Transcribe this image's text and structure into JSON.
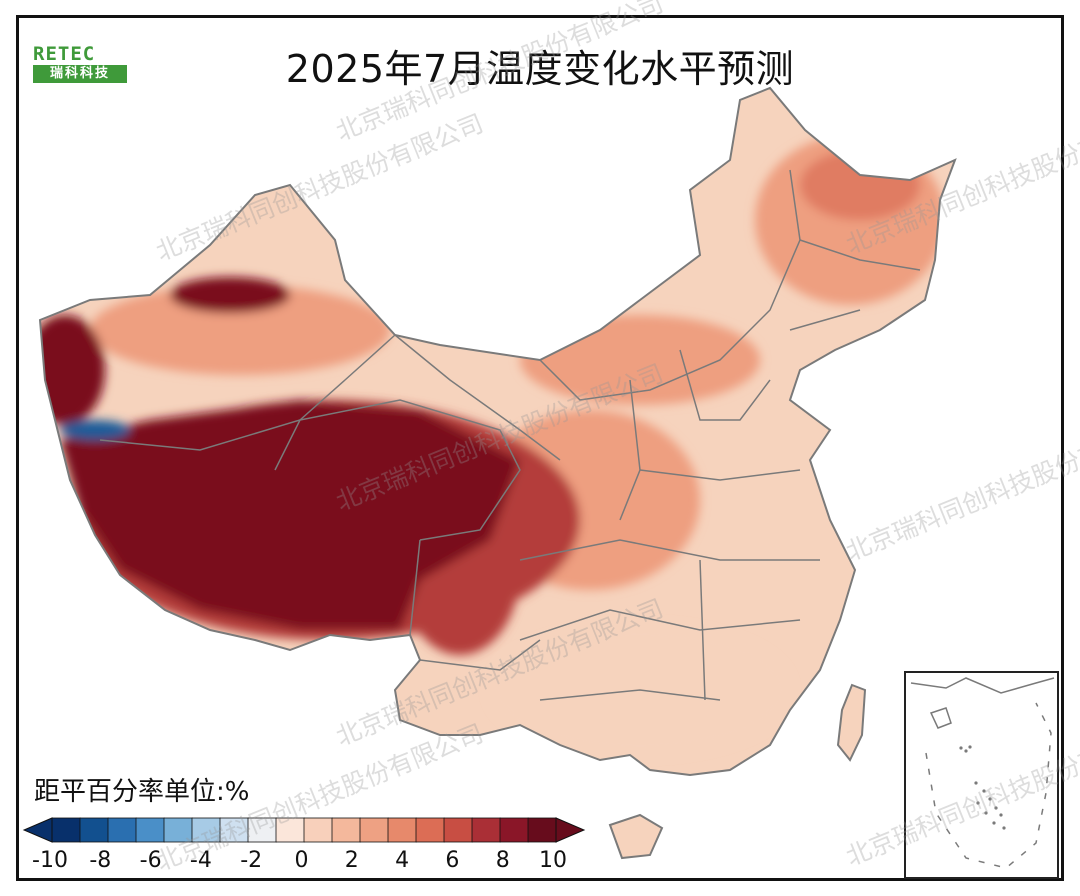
{
  "title": "2025年7月温度变化水平预测",
  "logo": {
    "top_text": "RETEC",
    "bottom_text": "瑞科科技"
  },
  "watermark": "北京瑞科同创科技股份有限公司",
  "legend": {
    "title": "距平百分率单位:%",
    "ticks": [
      "-10",
      "-8",
      "-6",
      "-4",
      "-2",
      "0",
      "2",
      "4",
      "6",
      "8",
      "10"
    ],
    "colors": [
      "#08306b",
      "#12508f",
      "#2a6fb0",
      "#4a8fc8",
      "#78b0d8",
      "#a7cbe6",
      "#cfe0f0",
      "#eef0f3",
      "#fbe6da",
      "#f8d0bb",
      "#f4b89c",
      "#eea183",
      "#e7896b",
      "#dc6d55",
      "#c84e43",
      "#aa2f36",
      "#8a1628",
      "#670c1c"
    ]
  },
  "map": {
    "colors": {
      "light": "#f6d3bd",
      "mid": "#ee9f80",
      "strong": "#e07c62",
      "hot": "#b43c3a",
      "extreme": "#7a0f1e",
      "cool": "#1f5b99",
      "border": "#7a7a7a"
    }
  }
}
